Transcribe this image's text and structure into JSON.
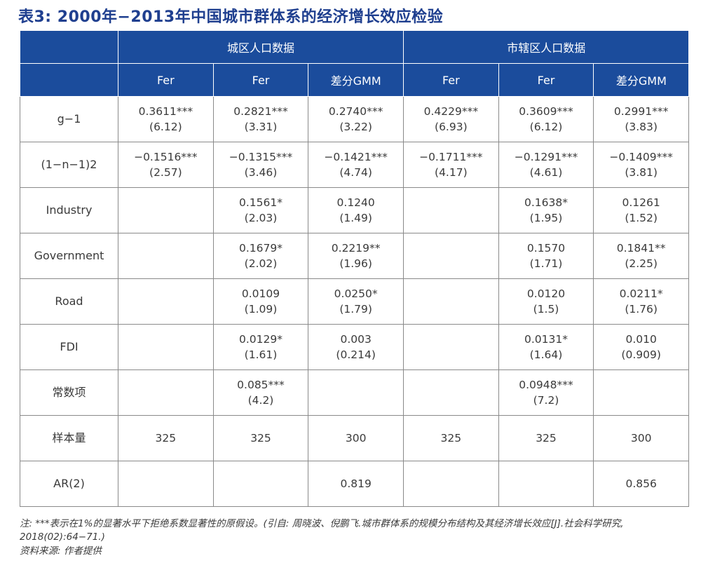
{
  "title": "表3: 2000年−2013年中国城市群体系的经济增长效应检验",
  "header": {
    "group_left": "城区人口数据",
    "group_right": "市辖区人口数据",
    "columns": [
      "Fer",
      "Fer",
      "差分GMM",
      "Fer",
      "Fer",
      "差分GMM"
    ]
  },
  "rows": [
    {
      "label": "g−1",
      "cells": [
        [
          "0.3611***",
          "(6.12)"
        ],
        [
          "0.2821***",
          "(3.31)"
        ],
        [
          "0.2740***",
          "(3.22)"
        ],
        [
          "0.4229***",
          "(6.93)"
        ],
        [
          "0.3609***",
          "(6.12)"
        ],
        [
          "0.2991***",
          "(3.83)"
        ]
      ]
    },
    {
      "label": "(1−n−1)2",
      "cells": [
        [
          "−0.1516***",
          "(2.57)"
        ],
        [
          "−0.1315***",
          "(3.46)"
        ],
        [
          "−0.1421***",
          "(4.74)"
        ],
        [
          "−0.1711***",
          "(4.17)"
        ],
        [
          "−0.1291***",
          "(4.61)"
        ],
        [
          "−0.1409***",
          "(3.81)"
        ]
      ]
    },
    {
      "label": "Industry",
      "cells": [
        [
          "",
          ""
        ],
        [
          "0.1561*",
          "(2.03)"
        ],
        [
          "0.1240",
          "(1.49)"
        ],
        [
          "",
          ""
        ],
        [
          "0.1638*",
          "(1.95)"
        ],
        [
          "0.1261",
          "(1.52)"
        ]
      ]
    },
    {
      "label": "Government",
      "cells": [
        [
          "",
          ""
        ],
        [
          "0.1679*",
          "(2.02)"
        ],
        [
          "0.2219**",
          "(1.96)"
        ],
        [
          "",
          ""
        ],
        [
          "0.1570",
          "(1.71)"
        ],
        [
          "0.1841**",
          "(2.25)"
        ]
      ]
    },
    {
      "label": "Road",
      "cells": [
        [
          "",
          ""
        ],
        [
          "0.0109",
          "(1.09)"
        ],
        [
          "0.0250*",
          "(1.79)"
        ],
        [
          "",
          ""
        ],
        [
          "0.0120",
          "(1.5)"
        ],
        [
          "0.0211*",
          "(1.76)"
        ]
      ]
    },
    {
      "label": "FDI",
      "cells": [
        [
          "",
          ""
        ],
        [
          "0.0129*",
          "(1.61)"
        ],
        [
          "0.003",
          "(0.214)"
        ],
        [
          "",
          ""
        ],
        [
          "0.0131*",
          "(1.64)"
        ],
        [
          "0.010",
          "(0.909)"
        ]
      ]
    },
    {
      "label": "常数项",
      "cells": [
        [
          "",
          ""
        ],
        [
          "0.085***",
          "(4.2)"
        ],
        [
          "",
          ""
        ],
        [
          "",
          ""
        ],
        [
          "0.0948***",
          "(7.2)"
        ],
        [
          "",
          ""
        ]
      ]
    },
    {
      "label": "样本量",
      "cells": [
        [
          "325",
          ""
        ],
        [
          "325",
          ""
        ],
        [
          "300",
          ""
        ],
        [
          "325",
          ""
        ],
        [
          "325",
          ""
        ],
        [
          "300",
          ""
        ]
      ]
    },
    {
      "label": "AR(2)",
      "cells": [
        [
          "",
          ""
        ],
        [
          "",
          ""
        ],
        [
          "0.819",
          ""
        ],
        [
          "",
          ""
        ],
        [
          "",
          ""
        ],
        [
          "0.856",
          ""
        ]
      ]
    }
  ],
  "notes": {
    "line1": "注: ***表示在1%的显著水平下拒绝系数显著性的原假设。(引自: 周晓波、倪鹏飞.城市群体系的规模分布结构及其经济增长效应[J].社会科学研究, 2018(02):64−71.)",
    "line2": "资料来源: 作者提供"
  }
}
